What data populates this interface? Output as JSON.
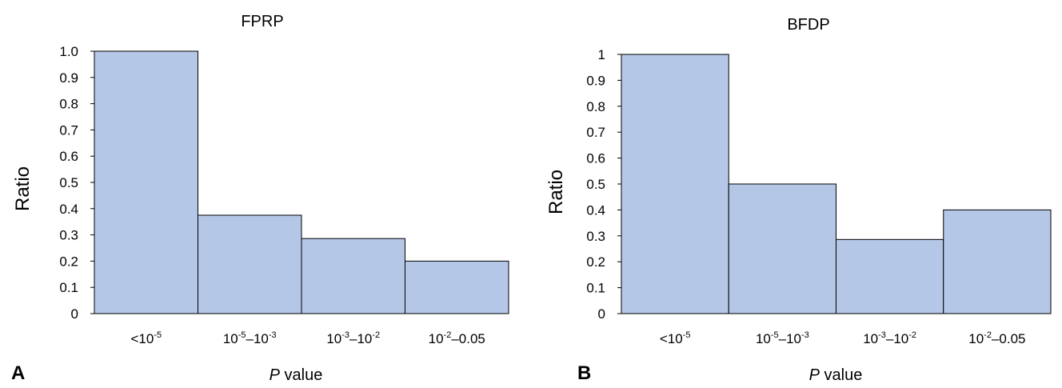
{
  "chart_data": [
    {
      "type": "bar",
      "panel_label": "A",
      "title": "FPRP",
      "ylabel": "Ratio",
      "xlabel_italic": "P",
      "xlabel_rest": " value",
      "ylim": [
        0,
        1
      ],
      "yticks": [
        "0",
        "0.1",
        "0.2",
        "0.3",
        "0.4",
        "0.5",
        "0.6",
        "0.7",
        "0.8",
        "0.9",
        "1.0"
      ],
      "categories": [
        {
          "base": "<10",
          "exp": "-5",
          "base2": "",
          "exp2": "",
          "tail": ""
        },
        {
          "base": "10",
          "exp": "-5",
          "base2": "–10",
          "exp2": "-3",
          "tail": ""
        },
        {
          "base": "10",
          "exp": "-3",
          "base2": "–10",
          "exp2": "-2",
          "tail": ""
        },
        {
          "base": "10",
          "exp": "-2",
          "base2": "",
          "exp2": "",
          "tail": "–0.05"
        }
      ],
      "values": [
        1.0,
        0.375,
        0.286,
        0.2
      ],
      "bar_color": "#b4c7e7",
      "grid": false
    },
    {
      "type": "bar",
      "panel_label": "B",
      "title": "BFDP",
      "ylabel": "Ratio",
      "xlabel_italic": "P",
      "xlabel_rest": " value",
      "ylim": [
        0,
        1
      ],
      "yticks": [
        "0",
        "0.1",
        "0.2",
        "0.3",
        "0.4",
        "0.5",
        "0.6",
        "0.7",
        "0.8",
        "0.9",
        "1"
      ],
      "categories": [
        {
          "base": "<10",
          "exp": "-5",
          "base2": "",
          "exp2": "",
          "tail": ""
        },
        {
          "base": "10",
          "exp": "-5",
          "base2": "–10",
          "exp2": "-3",
          "tail": ""
        },
        {
          "base": "10",
          "exp": "-3",
          "base2": "–10",
          "exp2": "-2",
          "tail": ""
        },
        {
          "base": "10",
          "exp": "-2",
          "base2": "",
          "exp2": "",
          "tail": "–0.05"
        }
      ],
      "values": [
        1.0,
        0.5,
        0.286,
        0.4
      ],
      "bar_color": "#b4c7e7",
      "grid": false
    }
  ]
}
